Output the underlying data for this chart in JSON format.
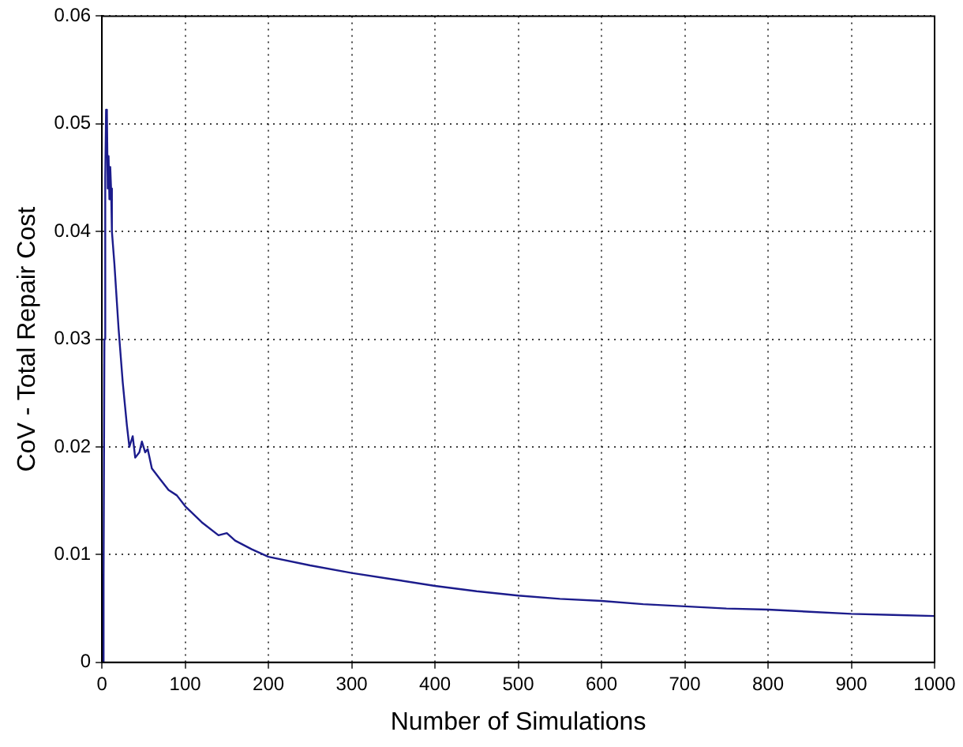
{
  "chart_data": {
    "type": "line",
    "xlabel": "Number of Simulations",
    "ylabel": "CoV - Total Repair Cost",
    "xlim": [
      0,
      1000
    ],
    "xticks": [
      0,
      100,
      200,
      300,
      400,
      500,
      600,
      700,
      800,
      900,
      1000
    ],
    "ylim": [
      0,
      0.06
    ],
    "yticks": [
      0,
      0.01,
      0.02,
      0.03,
      0.04,
      0.05,
      0.06
    ],
    "grid": true,
    "marker": "none",
    "line_style": "solid",
    "series": [
      {
        "color": "#1c1c8c",
        "x": [
          1,
          2,
          3,
          4,
          5,
          6,
          7,
          8,
          9,
          10,
          11,
          12,
          15,
          20,
          25,
          30,
          33,
          37,
          40,
          45,
          48,
          52,
          55,
          60,
          70,
          80,
          90,
          100,
          120,
          140,
          150,
          160,
          180,
          200,
          250,
          300,
          350,
          400,
          450,
          500,
          550,
          600,
          650,
          700,
          750,
          800,
          850,
          900,
          950,
          1000
        ],
        "values": [
          0,
          0.008,
          0.03,
          0.045,
          0.0513,
          0.051,
          0.044,
          0.047,
          0.043,
          0.046,
          0.044,
          0.04,
          0.037,
          0.031,
          0.026,
          0.022,
          0.02,
          0.021,
          0.019,
          0.0195,
          0.0205,
          0.0195,
          0.0198,
          0.018,
          0.017,
          0.016,
          0.0155,
          0.0145,
          0.013,
          0.0118,
          0.012,
          0.0113,
          0.0105,
          0.0098,
          0.009,
          0.0083,
          0.0077,
          0.0071,
          0.0066,
          0.0062,
          0.0059,
          0.0057,
          0.0054,
          0.0052,
          0.005,
          0.0049,
          0.0047,
          0.0045,
          0.0044,
          0.0043
        ]
      }
    ]
  }
}
